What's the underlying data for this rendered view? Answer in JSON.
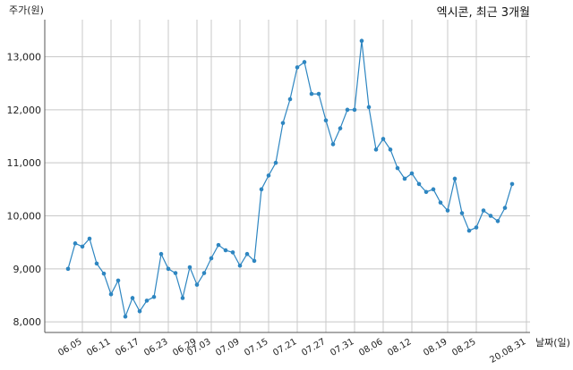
{
  "chart_data": {
    "type": "line",
    "title": "엑시콘, 최근 3개월",
    "ylabel": "주가(원)",
    "xlabel": "날짜(일)",
    "ylim": [
      7800,
      13700
    ],
    "yticks": [
      8000,
      9000,
      10000,
      11000,
      12000,
      13000
    ],
    "ytick_labels": [
      "8,000",
      "9,000",
      "10,000",
      "11,000",
      "12,000",
      "13,000"
    ],
    "grid": true,
    "color": "#2e86c1",
    "xtick_labels": [
      {
        "label": "06.05",
        "index": 2
      },
      {
        "label": "06.11",
        "index": 6
      },
      {
        "label": "06.17",
        "index": 10
      },
      {
        "label": "06.23",
        "index": 14
      },
      {
        "label": "06.29",
        "index": 18
      },
      {
        "label": "07.03",
        "index": 20
      },
      {
        "label": "07.09",
        "index": 24
      },
      {
        "label": "07.15",
        "index": 28
      },
      {
        "label": "07.21",
        "index": 32
      },
      {
        "label": "07.27",
        "index": 36
      },
      {
        "label": "07.31",
        "index": 40
      },
      {
        "label": "08.06",
        "index": 44
      },
      {
        "label": "08.12",
        "index": 48
      },
      {
        "label": "08.19",
        "index": 53
      },
      {
        "label": "08.25",
        "index": 57
      },
      {
        "label": "20.08.31",
        "index": 64
      }
    ],
    "series": [
      {
        "values": [
          9000,
          9480,
          9420,
          9570,
          9100,
          8910,
          8520,
          8780,
          8100,
          8450,
          8200,
          8400,
          8470,
          9280,
          9000,
          8920,
          8450,
          9030,
          8700,
          8920,
          9200,
          9450,
          9350,
          9310,
          9060,
          9280,
          9150,
          10500,
          10760,
          11000,
          11750,
          12200,
          12800,
          12900,
          12300,
          12300,
          11800,
          11350,
          11650,
          12000,
          12000,
          13300,
          12050,
          11250,
          11450,
          11250,
          10900,
          10700,
          10800,
          10600,
          10450,
          10500,
          10250,
          10100,
          10700,
          10050,
          9720,
          9780,
          10100,
          10000,
          9900,
          10150,
          10600
        ]
      }
    ]
  }
}
